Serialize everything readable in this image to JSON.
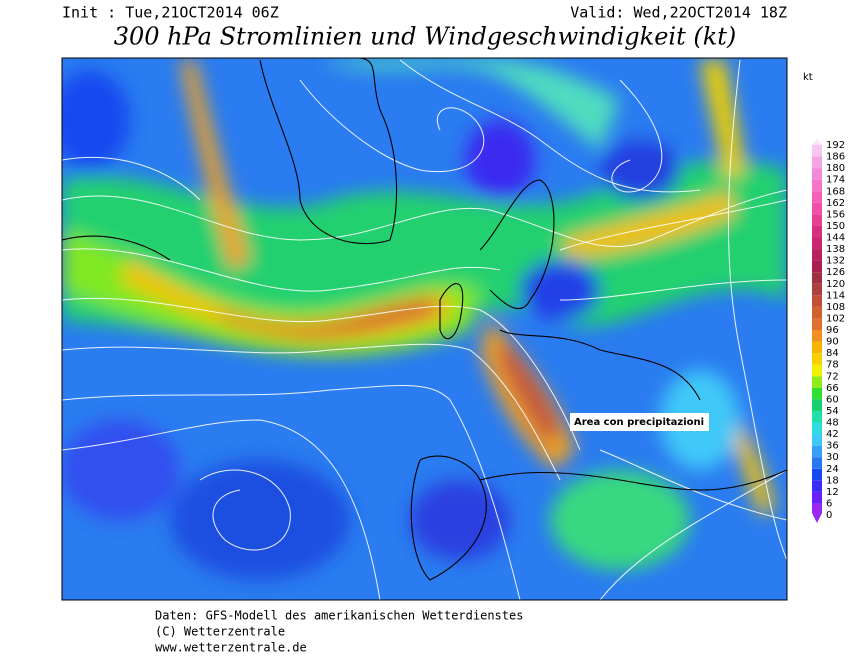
{
  "header": {
    "init": "Init : Tue,21OCT2014 06Z",
    "valid": "Valid: Wed,22OCT2014 18Z",
    "title": "300 hPa Stromlinien und Windgeschwindigkeit (kt)"
  },
  "annotation": "Area con precipitazioni",
  "legend": {
    "unit": "kt",
    "levels": [
      {
        "value": 0,
        "color": "#9a28f0"
      },
      {
        "value": 6,
        "color": "#6a20f8"
      },
      {
        "value": 12,
        "color": "#3a2cf8"
      },
      {
        "value": 18,
        "color": "#1848f0"
      },
      {
        "value": 24,
        "color": "#2a78f0"
      },
      {
        "value": 30,
        "color": "#38a0f8"
      },
      {
        "value": 36,
        "color": "#40c8f8"
      },
      {
        "value": 42,
        "color": "#30dce0"
      },
      {
        "value": 48,
        "color": "#20e0a8"
      },
      {
        "value": 54,
        "color": "#18d070"
      },
      {
        "value": 60,
        "color": "#30e030"
      },
      {
        "value": 66,
        "color": "#90ec18"
      },
      {
        "value": 72,
        "color": "#f0f000"
      },
      {
        "value": 78,
        "color": "#f8d000"
      },
      {
        "value": 84,
        "color": "#f8b400"
      },
      {
        "value": 90,
        "color": "#f09020"
      },
      {
        "value": 96,
        "color": "#e07030"
      },
      {
        "value": 102,
        "color": "#d06030"
      },
      {
        "value": 108,
        "color": "#c05038"
      },
      {
        "value": 114,
        "color": "#b04040"
      },
      {
        "value": 120,
        "color": "#a03040"
      },
      {
        "value": 126,
        "color": "#a82050"
      },
      {
        "value": 132,
        "color": "#b82060"
      },
      {
        "value": 138,
        "color": "#c82870"
      },
      {
        "value": 144,
        "color": "#d83080"
      },
      {
        "value": 150,
        "color": "#e84090"
      },
      {
        "value": 156,
        "color": "#f050a8"
      },
      {
        "value": 162,
        "color": "#f460b8"
      },
      {
        "value": 168,
        "color": "#f474c8"
      },
      {
        "value": 174,
        "color": "#f488d8"
      },
      {
        "value": 180,
        "color": "#f4a4e4"
      },
      {
        "value": 186,
        "color": "#f8c4f0"
      },
      {
        "value": 192,
        "color": "#fce4fc"
      }
    ]
  },
  "footer": {
    "line1": "Daten: GFS-Modell des amerikanischen Wetterdienstes",
    "line2": "(C) Wetterzentrale",
    "line3": "www.wetterzentrale.de"
  }
}
